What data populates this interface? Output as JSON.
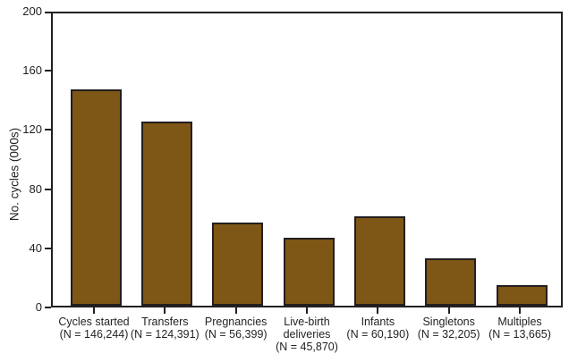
{
  "chart_data": {
    "type": "bar",
    "title": "",
    "ylabel": "No. cycles (000s)",
    "xlabel": "",
    "ylim": [
      0,
      200
    ],
    "yticks": [
      0,
      40,
      80,
      120,
      160,
      200
    ],
    "grid": false,
    "legend": "none",
    "bar_color": "#7e5615",
    "axis_color": "#231f20",
    "categories": [
      {
        "label_lines": [
          "Cycles started",
          "(N = 146,244)"
        ],
        "value": 146.244
      },
      {
        "label_lines": [
          "Transfers",
          "(N = 124,391)"
        ],
        "value": 124.391
      },
      {
        "label_lines": [
          "Pregnancies",
          "(N = 56,399)"
        ],
        "value": 56.399
      },
      {
        "label_lines": [
          "Live-birth",
          "deliveries",
          "(N = 45,870)"
        ],
        "value": 45.87
      },
      {
        "label_lines": [
          "Infants",
          "(N = 60,190)"
        ],
        "value": 60.19
      },
      {
        "label_lines": [
          "Singletons",
          "(N = 32,205)"
        ],
        "value": 32.205
      },
      {
        "label_lines": [
          "Multiples",
          "(N = 13,665)"
        ],
        "value": 13.665
      }
    ]
  }
}
